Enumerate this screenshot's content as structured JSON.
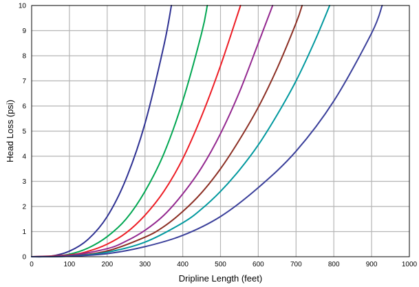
{
  "chart_data": {
    "type": "line",
    "title": "",
    "xlabel": "Dripline Length (feet)",
    "ylabel": "Head Loss (psi)",
    "xlim": [
      0,
      1000
    ],
    "ylim": [
      0,
      10
    ],
    "x_ticks": [
      0,
      100,
      200,
      300,
      400,
      500,
      600,
      700,
      800,
      900,
      1000
    ],
    "y_ticks": [
      0,
      1,
      2,
      3,
      4,
      5,
      6,
      7,
      8,
      9,
      10
    ],
    "grid": true,
    "legend": "none",
    "series": [
      {
        "color": "#2e3192",
        "x": [
          0,
          50,
          100,
          150,
          200,
          250,
          300,
          350,
          370
        ],
        "y": [
          0,
          0.02,
          0.22,
          0.7,
          1.6,
          3.1,
          5.3,
          8.4,
          10
        ]
      },
      {
        "color": "#00a651",
        "x": [
          0,
          50,
          100,
          150,
          200,
          250,
          300,
          350,
          400,
          450,
          465
        ],
        "y": [
          0,
          0.01,
          0.1,
          0.35,
          0.8,
          1.5,
          2.6,
          4.1,
          6.2,
          8.9,
          10
        ]
      },
      {
        "color": "#ed1c24",
        "x": [
          0,
          100,
          150,
          200,
          250,
          300,
          350,
          400,
          450,
          500,
          553
        ],
        "y": [
          0,
          0.07,
          0.22,
          0.5,
          0.95,
          1.65,
          2.6,
          3.9,
          5.6,
          7.6,
          10
        ]
      },
      {
        "color": "#93278f",
        "x": [
          0,
          100,
          200,
          250,
          300,
          350,
          400,
          450,
          500,
          550,
          600,
          638
        ],
        "y": [
          0,
          0.05,
          0.32,
          0.62,
          1.05,
          1.65,
          2.5,
          3.55,
          4.9,
          6.55,
          8.5,
          10
        ]
      },
      {
        "color": "#8b2e23",
        "x": [
          0,
          100,
          200,
          300,
          350,
          400,
          450,
          500,
          550,
          600,
          650,
          700,
          716
        ],
        "y": [
          0,
          0.03,
          0.23,
          0.78,
          1.2,
          1.8,
          2.55,
          3.5,
          4.65,
          5.95,
          7.5,
          9.3,
          10
        ]
      },
      {
        "color": "#00989e",
        "x": [
          0,
          100,
          200,
          300,
          400,
          450,
          500,
          550,
          600,
          650,
          700,
          750,
          789
        ],
        "y": [
          0,
          0.02,
          0.18,
          0.58,
          1.35,
          1.9,
          2.6,
          3.45,
          4.45,
          5.65,
          7.0,
          8.6,
          10
        ]
      },
      {
        "color": "#3a3f9a",
        "x": [
          0,
          100,
          200,
          300,
          400,
          500,
          600,
          700,
          800,
          900,
          928
        ],
        "y": [
          0,
          0.02,
          0.12,
          0.4,
          0.85,
          1.6,
          2.75,
          4.2,
          6.2,
          8.9,
          10
        ]
      }
    ]
  }
}
